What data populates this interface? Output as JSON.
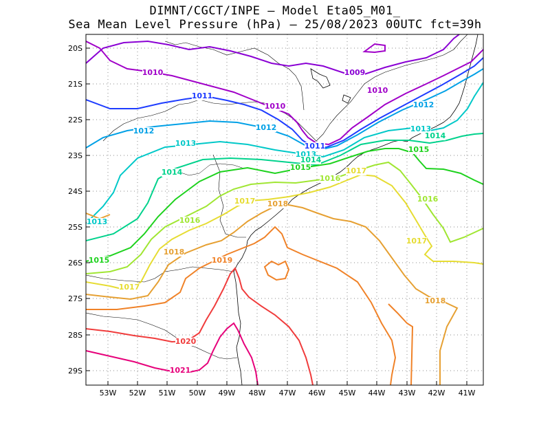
{
  "title": {
    "line1": "DIMNT/CGCT/INPE —  Model Eta05_M01_",
    "line2": "Sea Mean Level Pressure (hPa) — 25/08/2023 00UTC fct=39h"
  },
  "axes": {
    "lat_labels": [
      "20S",
      "21S",
      "22S",
      "23S",
      "24S",
      "25S",
      "26S",
      "27S",
      "28S",
      "29S"
    ],
    "lon_labels": [
      "53W",
      "52W",
      "51W",
      "50W",
      "49W",
      "48W",
      "47W",
      "46W",
      "45W",
      "44W",
      "43W",
      "42W",
      "41W"
    ]
  },
  "colors": {
    "c1009": "#8a00d4",
    "c1010": "#a000c8",
    "c1011": "#1e3cff",
    "c1012": "#00a0e6",
    "c1013": "#00c8c8",
    "c1014": "#00d28c",
    "c1015": "#1ed21e",
    "c1016": "#a0e632",
    "c1017": "#e6dc32",
    "c1018": "#e6a032",
    "c1019": "#f08228",
    "c1020": "#f03c3c",
    "c1021": "#e6007a",
    "coast": "#000000",
    "grid": "#888888"
  },
  "isobars": [
    {
      "label": "1009"
    },
    {
      "label": "1010"
    },
    {
      "label": "1010"
    },
    {
      "label": "1010"
    },
    {
      "label": "1011"
    },
    {
      "label": "1011"
    },
    {
      "label": "1012"
    },
    {
      "label": "1012"
    },
    {
      "label": "1012"
    },
    {
      "label": "1013"
    },
    {
      "label": "1013"
    },
    {
      "label": "1013"
    },
    {
      "label": "1013"
    },
    {
      "label": "1014"
    },
    {
      "label": "1014"
    },
    {
      "label": "1014"
    },
    {
      "label": "1015"
    },
    {
      "label": "1015"
    },
    {
      "label": "1015"
    },
    {
      "label": "1016"
    },
    {
      "label": "1016"
    },
    {
      "label": "1016"
    },
    {
      "label": "1017"
    },
    {
      "label": "1017"
    },
    {
      "label": "1017"
    },
    {
      "label": "1017"
    },
    {
      "label": "1018"
    },
    {
      "label": "1018"
    },
    {
      "label": "1018"
    },
    {
      "label": "1019"
    },
    {
      "label": "1020"
    },
    {
      "label": "1021"
    }
  ]
}
